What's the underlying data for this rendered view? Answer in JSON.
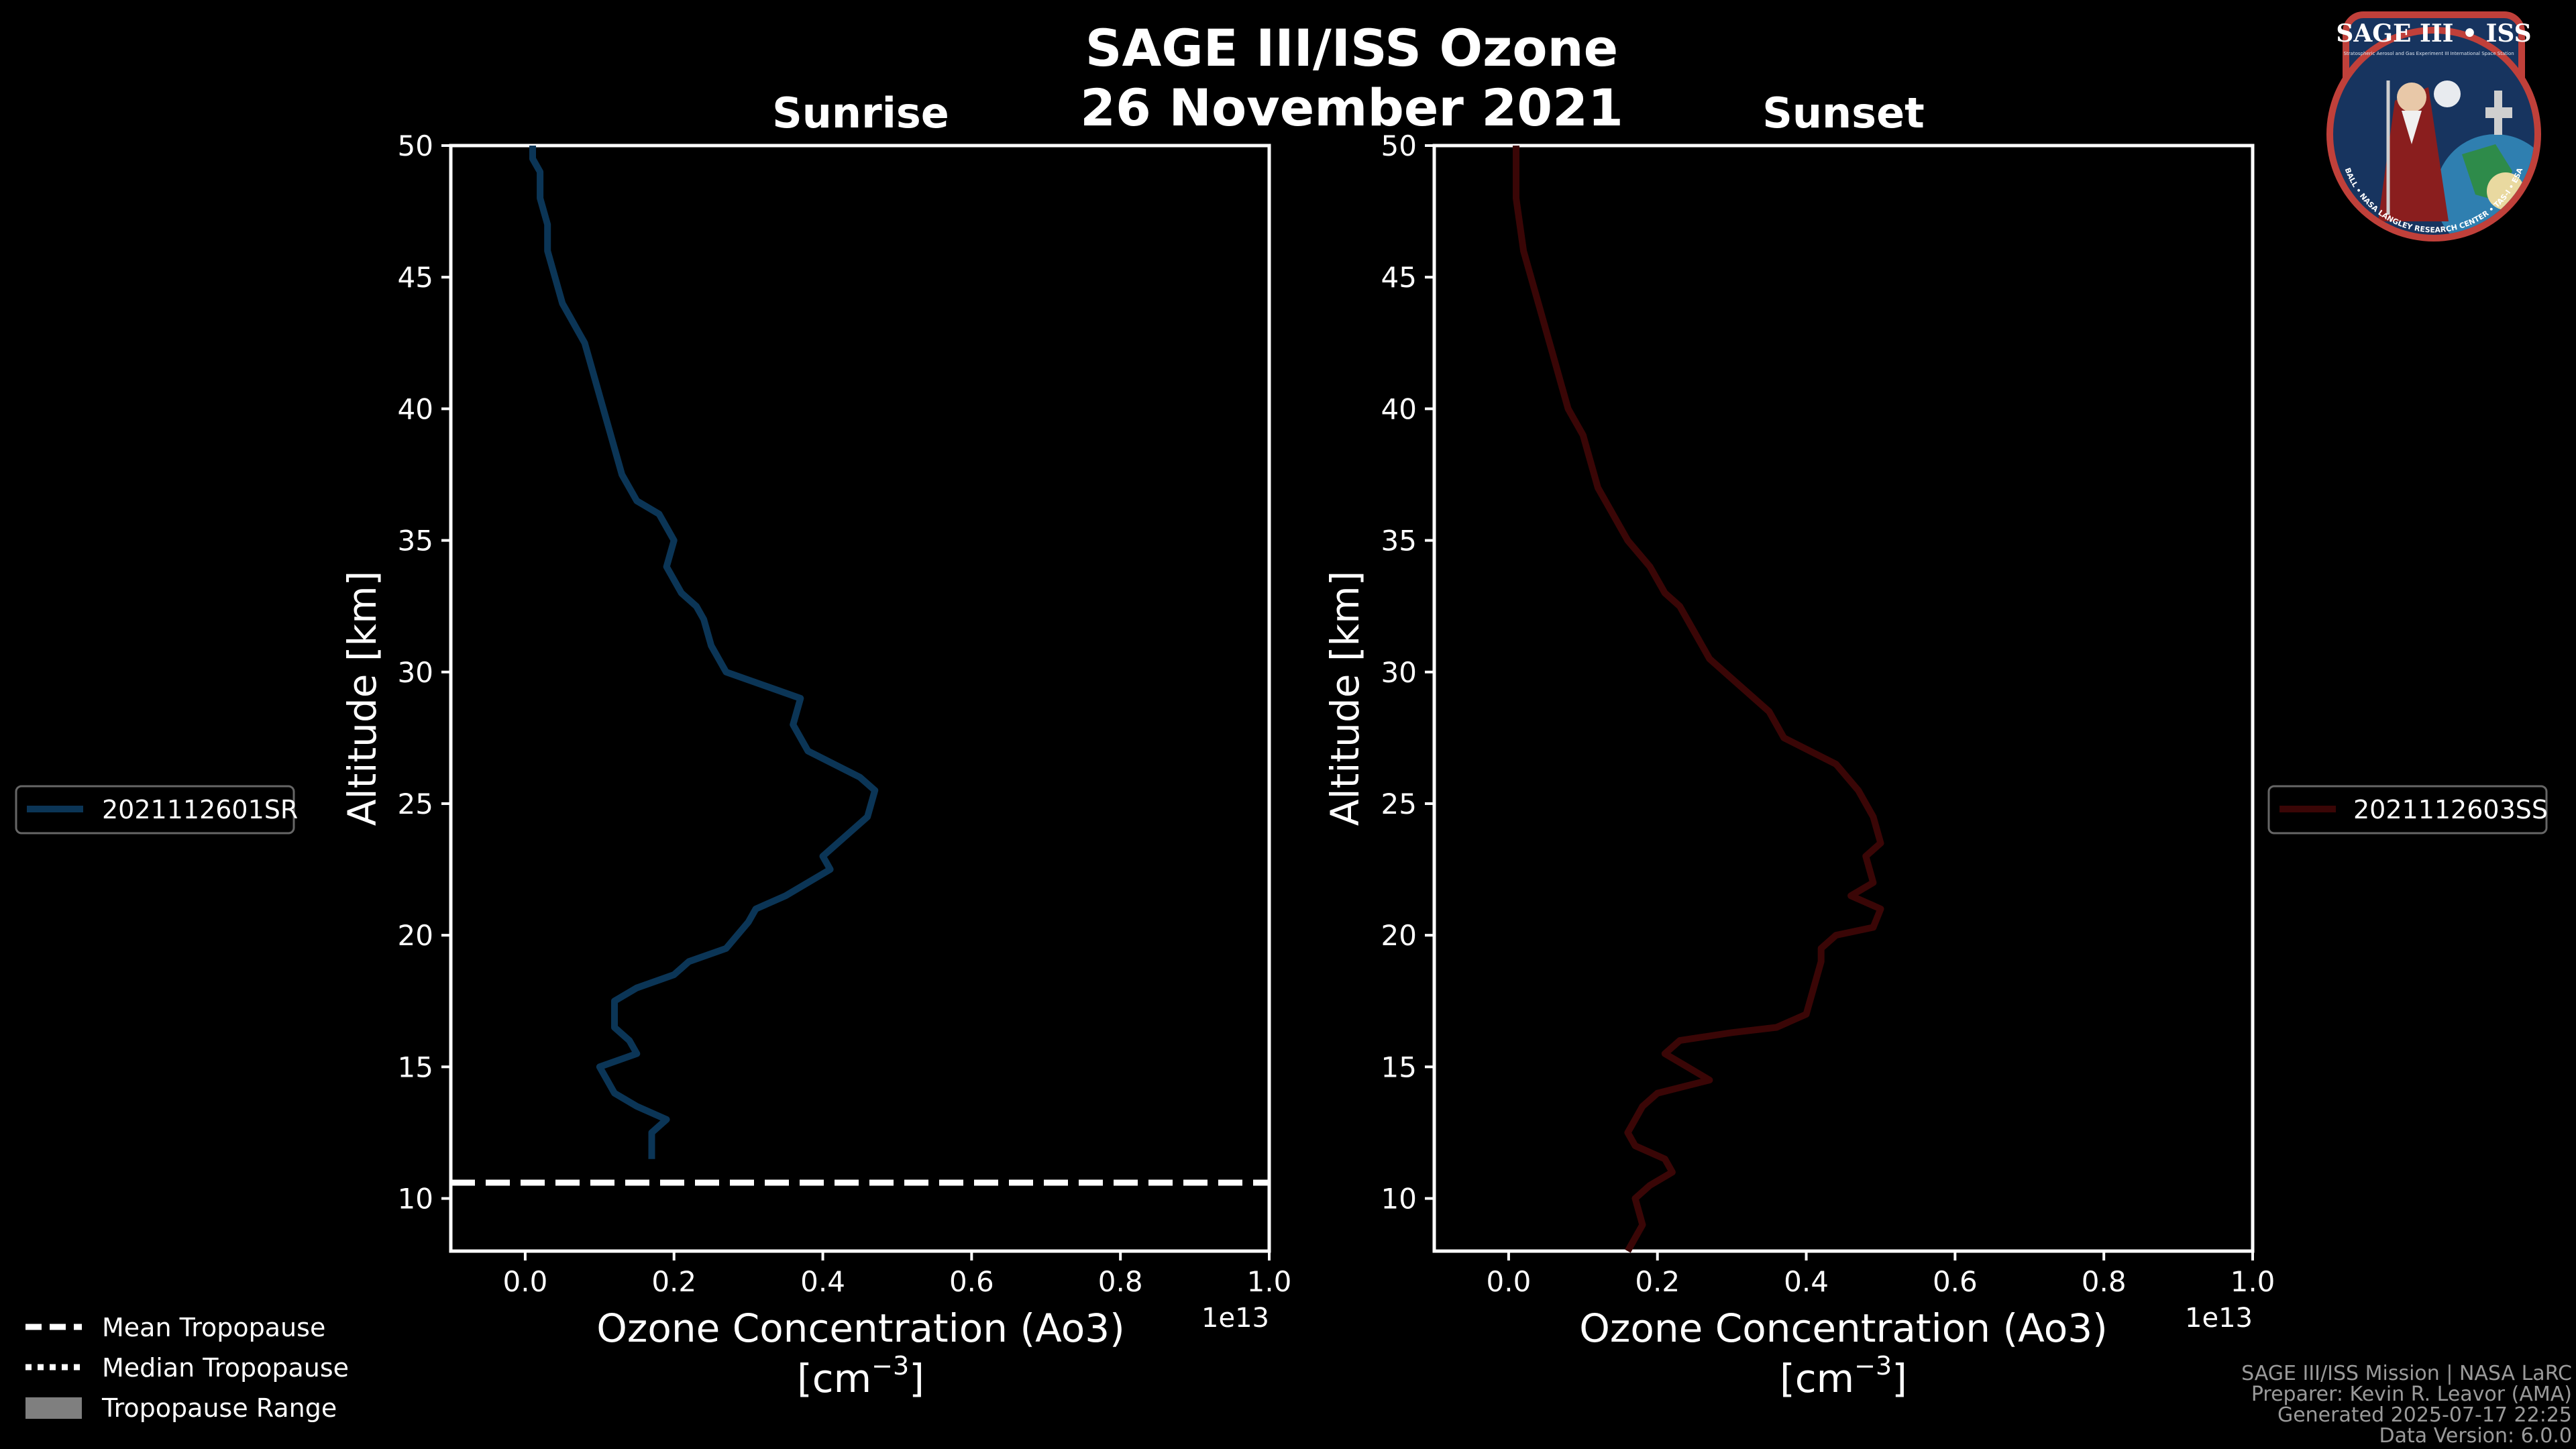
{
  "title_line1": "SAGE III/ISS Ozone",
  "title_line2": "26 November 2021",
  "chart_data": [
    {
      "type": "line",
      "panel": "left",
      "title": "Sunrise",
      "xlabel_line1": "Ozone Concentration (Ao3)",
      "xlabel_line2": "[cm",
      "xlabel_sup": "−3",
      "xlabel_close": "]",
      "x_offset_text": "1e13",
      "ylabel": "Altitude [km]",
      "xlim": [
        -0.1,
        1.0
      ],
      "ylim": [
        8,
        50
      ],
      "xticks": [
        0.0,
        0.2,
        0.4,
        0.6,
        0.8,
        1.0
      ],
      "xtick_labels": [
        "0.0",
        "0.2",
        "0.4",
        "0.6",
        "0.8",
        "1.0"
      ],
      "yticks": [
        10,
        15,
        20,
        25,
        30,
        35,
        40,
        45,
        50
      ],
      "ytick_labels": [
        "10",
        "15",
        "20",
        "25",
        "30",
        "35",
        "40",
        "45",
        "50"
      ],
      "series": [
        {
          "name": "2021112601SR",
          "color": "#0b3556",
          "x": [
            0.17,
            0.17,
            0.19,
            0.15,
            0.12,
            0.1,
            0.15,
            0.14,
            0.12,
            0.12,
            0.15,
            0.2,
            0.22,
            0.27,
            0.3,
            0.31,
            0.35,
            0.41,
            0.4,
            0.46,
            0.47,
            0.45,
            0.38,
            0.36,
            0.37,
            0.27,
            0.25,
            0.24,
            0.23,
            0.21,
            0.19,
            0.2,
            0.18,
            0.15,
            0.13,
            0.12,
            0.11,
            0.1,
            0.09,
            0.08,
            0.07,
            0.06,
            0.05,
            0.04,
            0.03,
            0.03,
            0.02,
            0.02,
            0.01,
            0.01
          ],
          "y": [
            11.5,
            12.5,
            13.0,
            13.5,
            14.0,
            15.0,
            15.5,
            16.0,
            16.5,
            17.5,
            18.0,
            18.5,
            19.0,
            19.5,
            20.5,
            21.0,
            21.5,
            22.5,
            23.0,
            24.5,
            25.5,
            26.0,
            27.0,
            28.0,
            29.0,
            30.0,
            31.0,
            32.0,
            32.5,
            33.0,
            34.0,
            35.0,
            36.0,
            36.5,
            37.5,
            38.5,
            39.5,
            40.5,
            41.5,
            42.5,
            43.0,
            43.5,
            44.0,
            45.0,
            46.0,
            47.0,
            48.0,
            49.0,
            49.5,
            50.0
          ]
        }
      ],
      "legend": {
        "placement": "left-center",
        "label": "2021112601SR"
      },
      "tropopause": {
        "mean": 10.6,
        "median": 10.6
      }
    },
    {
      "type": "line",
      "panel": "right",
      "title": "Sunset",
      "xlabel_line1": "Ozone Concentration (Ao3)",
      "xlabel_line2": "[cm",
      "xlabel_sup": "−3",
      "xlabel_close": "]",
      "x_offset_text": "1e13",
      "ylabel": "Altitude [km]",
      "xlim": [
        -0.1,
        1.0
      ],
      "ylim": [
        8,
        50
      ],
      "xticks": [
        0.0,
        0.2,
        0.4,
        0.6,
        0.8,
        1.0
      ],
      "xtick_labels": [
        "0.0",
        "0.2",
        "0.4",
        "0.6",
        "0.8",
        "1.0"
      ],
      "yticks": [
        10,
        15,
        20,
        25,
        30,
        35,
        40,
        45,
        50
      ],
      "ytick_labels": [
        "10",
        "15",
        "20",
        "25",
        "30",
        "35",
        "40",
        "45",
        "50"
      ],
      "series": [
        {
          "name": "2021112603SS",
          "color": "#3a0606",
          "x": [
            0.16,
            0.18,
            0.17,
            0.19,
            0.22,
            0.21,
            0.17,
            0.16,
            0.17,
            0.18,
            0.2,
            0.27,
            0.24,
            0.21,
            0.23,
            0.3,
            0.36,
            0.4,
            0.41,
            0.42,
            0.42,
            0.44,
            0.49,
            0.5,
            0.46,
            0.49,
            0.48,
            0.5,
            0.49,
            0.48,
            0.47,
            0.44,
            0.37,
            0.35,
            0.31,
            0.27,
            0.25,
            0.23,
            0.21,
            0.19,
            0.16,
            0.14,
            0.12,
            0.11,
            0.1,
            0.08,
            0.07,
            0.06,
            0.05,
            0.04,
            0.03,
            0.02,
            0.01,
            0.01
          ],
          "y": [
            8.0,
            9.0,
            10.0,
            10.5,
            11.0,
            11.5,
            12.0,
            12.5,
            13.0,
            13.5,
            14.0,
            14.5,
            15.0,
            15.5,
            16.0,
            16.3,
            16.5,
            17.0,
            18.0,
            19.0,
            19.5,
            20.0,
            20.3,
            21.0,
            21.5,
            22.0,
            23.0,
            23.5,
            24.5,
            25.0,
            25.5,
            26.5,
            27.5,
            28.5,
            29.5,
            30.5,
            31.5,
            32.5,
            33.0,
            34.0,
            35.0,
            36.0,
            37.0,
            38.0,
            39.0,
            40.0,
            41.0,
            42.0,
            43.0,
            44.0,
            45.0,
            46.0,
            48.0,
            50.0
          ]
        }
      ],
      "legend": {
        "placement": "right-center",
        "label": "2021112603SS"
      }
    }
  ],
  "bottom_legend": {
    "mean": "Mean Tropopause",
    "median": "Median Tropopause",
    "range": "Tropopause Range"
  },
  "logo": {
    "title": "SAGE III • ISS",
    "sub_left": "Stratospheric Aerosol and Gas Experiment III",
    "sub_right": "International Space Station",
    "ring": "BALL • NASA LANGLEY RESEARCH CENTER • TAS-I • ESA"
  },
  "footer": {
    "line1": "SAGE III/ISS Mission | NASA LaRC",
    "line2": "Preparer: Kevin R. Leavor (AMA)",
    "line3": "Generated 2025-07-17 22:25",
    "line4": "Data Version: 6.0.0"
  },
  "colors": {
    "background": "#000000",
    "foreground": "#ffffff",
    "sunrise": "#0b3556",
    "sunset": "#3a0606",
    "range": "#7f7f7f",
    "logo_border": "#c0403a",
    "logo_fill": "#17345f"
  }
}
